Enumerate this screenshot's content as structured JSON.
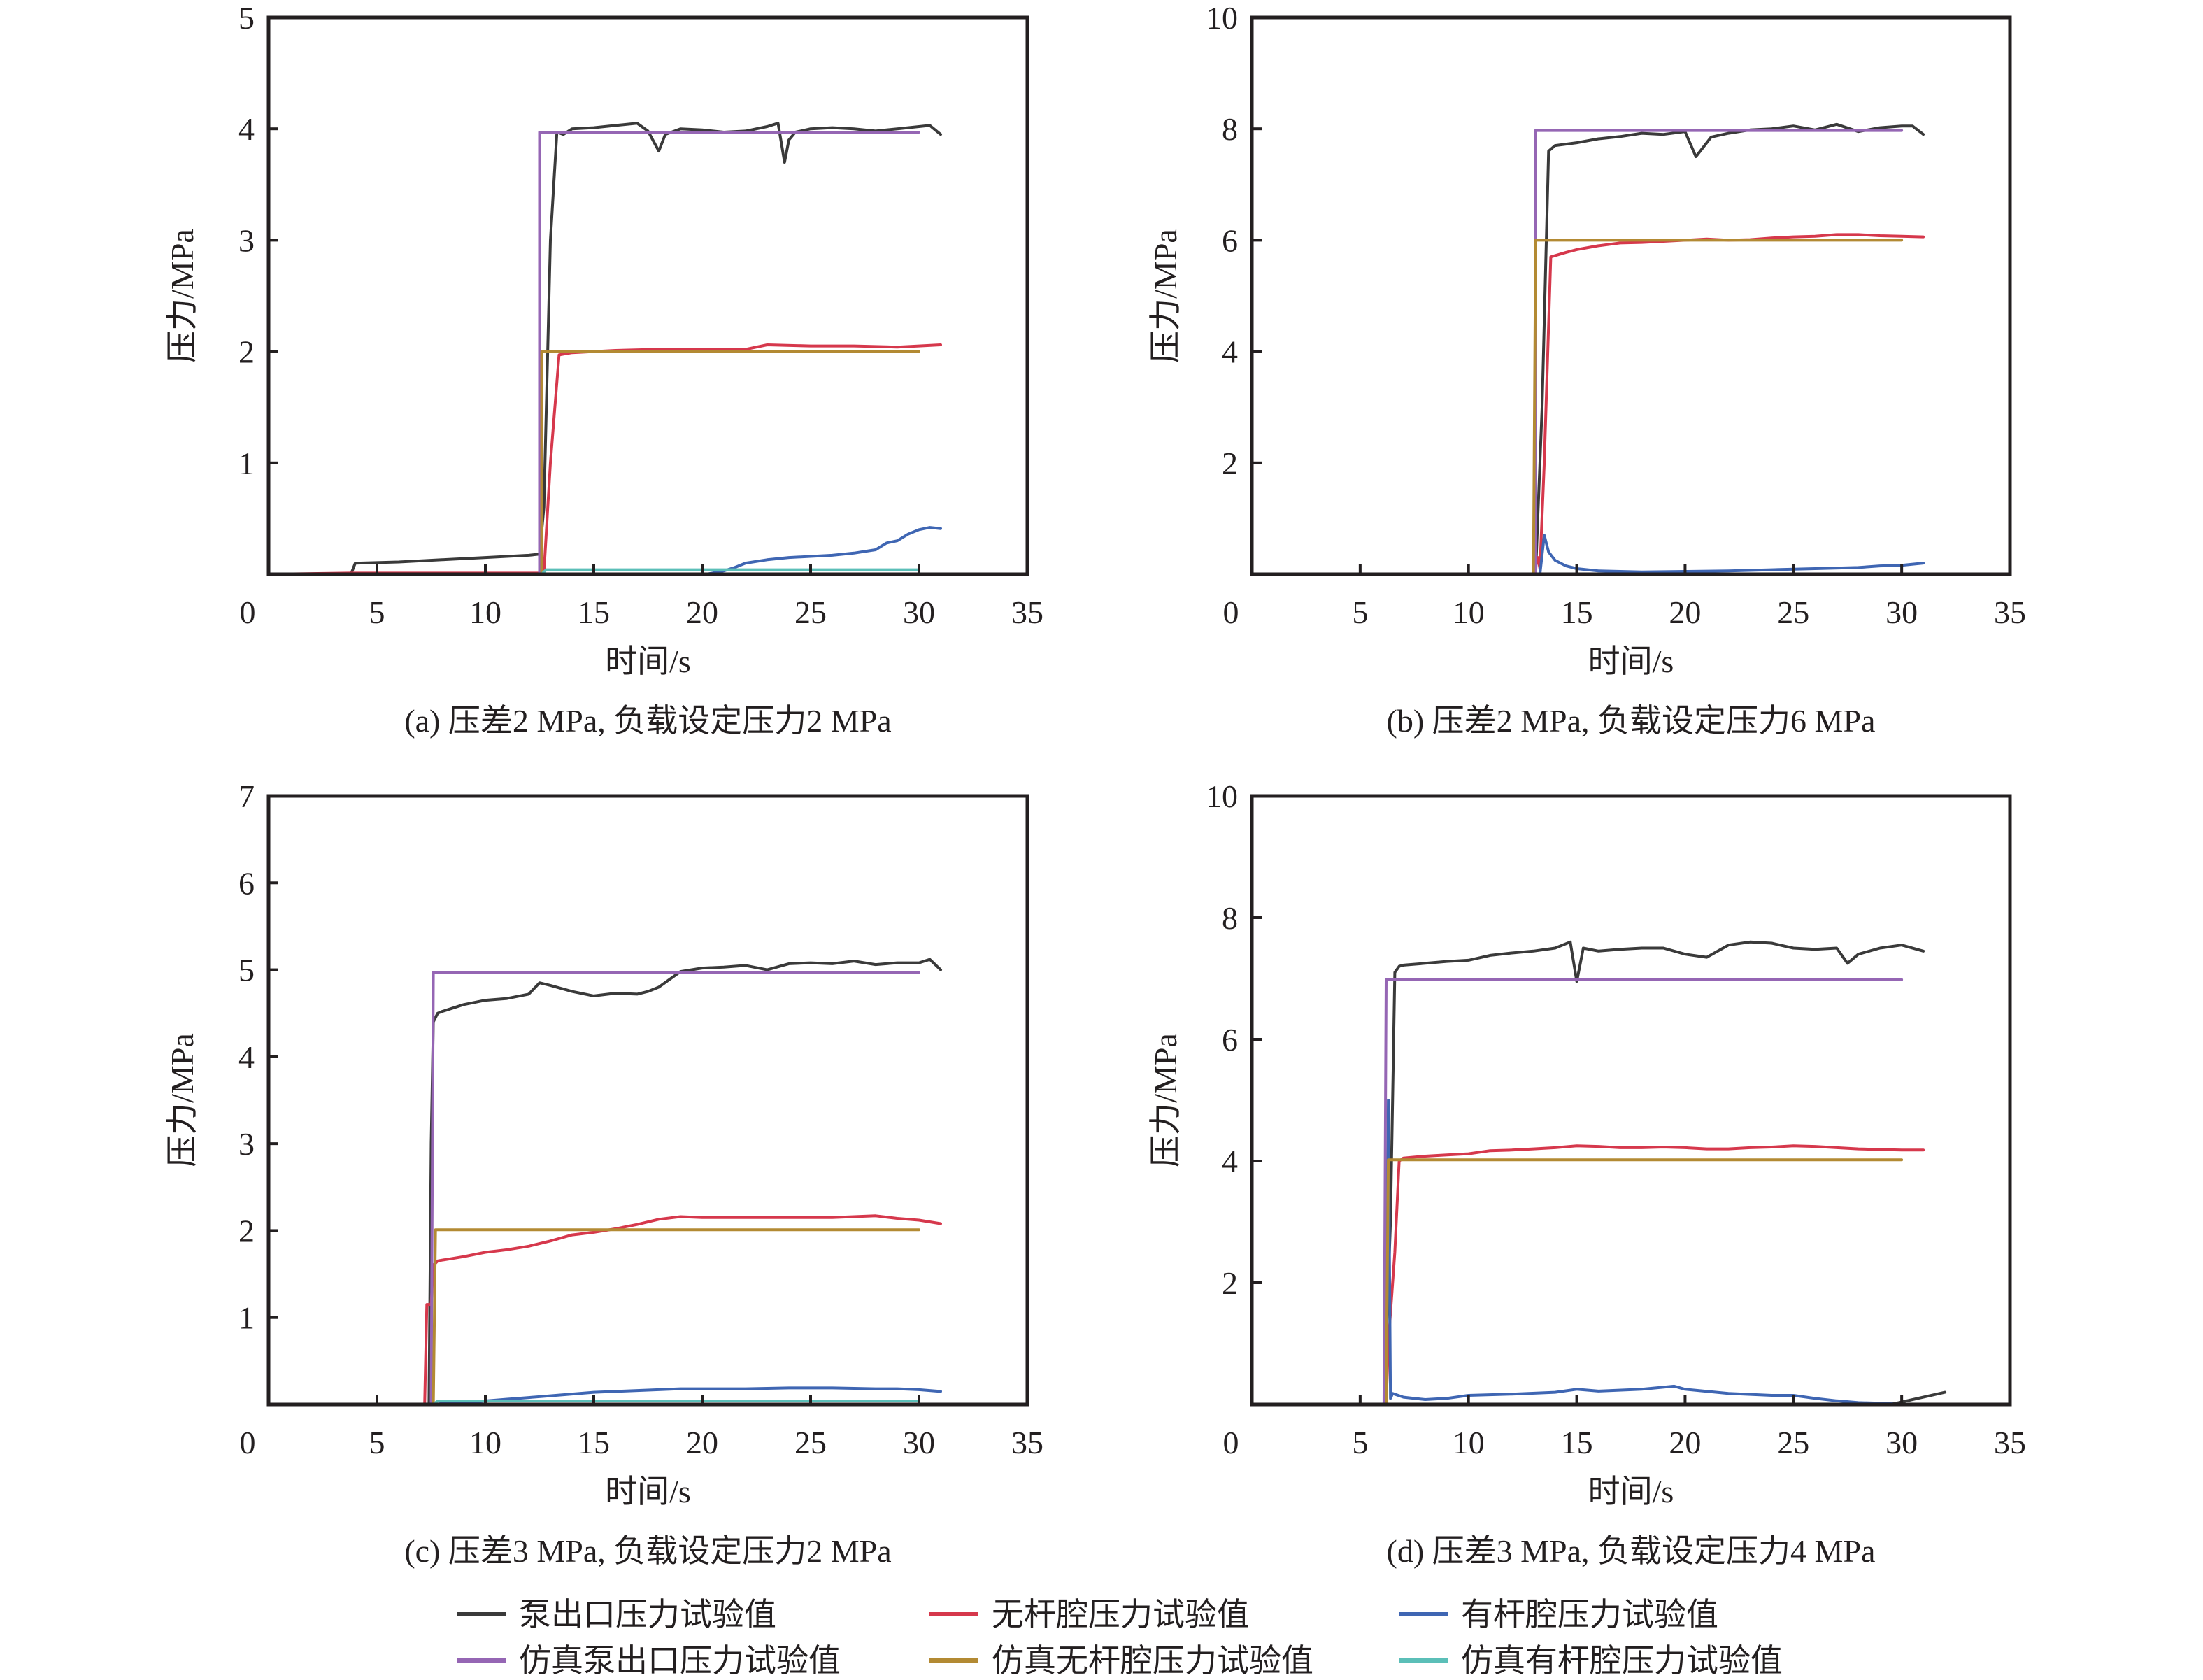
{
  "legend": [
    {
      "label": "泵出口压力试验值",
      "color": "#3a3a3a"
    },
    {
      "label": "无杆腔压力试验值",
      "color": "#d6384c"
    },
    {
      "label": "有杆腔压力试验值",
      "color": "#3f66b3"
    },
    {
      "label": "仿真泵出口压力试验值",
      "color": "#9566b4"
    },
    {
      "label": "仿真无杆腔压力试验值",
      "color": "#b38a33"
    },
    {
      "label": "仿真有杆腔压力试验值",
      "color": "#5bbfb8"
    }
  ],
  "chart_data": [
    {
      "type": "line",
      "id": "a",
      "title": "(a) 压差2 MPa, 负载设定压力2 MPa",
      "xlabel": "时间/s",
      "ylabel": "压力/MPa",
      "xlim": [
        0,
        35
      ],
      "ylim": [
        0,
        5
      ],
      "xticks": [
        0,
        5,
        10,
        15,
        20,
        25,
        30,
        35
      ],
      "yticks": [
        1,
        2,
        3,
        4,
        5
      ],
      "ytick_labels": [
        "1",
        "2",
        "3",
        "4",
        "5"
      ],
      "grid": false,
      "series": [
        {
          "name": "泵出口压力试验值",
          "x": [
            0,
            3.8,
            4.0,
            4.1,
            6,
            8,
            10,
            12,
            12.5,
            12.7,
            13.0,
            13.3,
            13.6,
            14,
            15,
            16,
            17,
            17.5,
            18,
            18.3,
            19,
            20,
            21,
            22,
            23,
            23.5,
            23.8,
            24.0,
            24.3,
            25,
            26,
            27,
            28,
            29,
            30,
            30.5,
            31
          ],
          "y": [
            0,
            0,
            0.1,
            0.1,
            0.11,
            0.13,
            0.15,
            0.17,
            0.18,
            0.6,
            3.0,
            3.97,
            3.95,
            4.0,
            4.01,
            4.03,
            4.05,
            3.98,
            3.8,
            3.95,
            4.0,
            3.99,
            3.97,
            3.98,
            4.02,
            4.05,
            3.7,
            3.9,
            3.97,
            4.0,
            4.01,
            4.0,
            3.98,
            4.0,
            4.02,
            4.03,
            3.95
          ]
        },
        {
          "name": "无杆腔压力试验值",
          "x": [
            0,
            3.7,
            4.0,
            12.7,
            13.0,
            13.4,
            14,
            16,
            18,
            20,
            22,
            23,
            25,
            27,
            29,
            30,
            31
          ],
          "y": [
            0,
            0.01,
            0.01,
            0.01,
            1.0,
            1.97,
            1.99,
            2.01,
            2.02,
            2.02,
            2.02,
            2.06,
            2.05,
            2.05,
            2.04,
            2.05,
            2.06
          ]
        },
        {
          "name": "有杆腔压力试验值",
          "x": [
            0,
            20.2,
            21,
            21.5,
            22,
            23,
            24,
            25,
            26,
            27,
            28,
            28.5,
            29,
            29.5,
            30,
            30.5,
            31
          ],
          "y": [
            0,
            0,
            0.03,
            0.06,
            0.1,
            0.13,
            0.15,
            0.16,
            0.17,
            0.19,
            0.22,
            0.28,
            0.3,
            0.36,
            0.4,
            0.42,
            0.41
          ]
        },
        {
          "name": "仿真泵出口压力试验值",
          "x": [
            0,
            12.5,
            12.5,
            30
          ],
          "y": [
            0,
            0,
            3.97,
            3.97
          ]
        },
        {
          "name": "仿真无杆腔压力试验值",
          "x": [
            0,
            12.6,
            12.6,
            30
          ],
          "y": [
            0,
            0,
            2.0,
            2.0
          ]
        },
        {
          "name": "仿真有杆腔压力试验值",
          "x": [
            0,
            12.6,
            12.8,
            30
          ],
          "y": [
            0,
            0,
            0.04,
            0.04
          ]
        }
      ]
    },
    {
      "type": "line",
      "id": "b",
      "title": "(b) 压差2 MPa, 负载设定压力6 MPa",
      "xlabel": "时间/s",
      "ylabel": "压力/MPa",
      "xlim": [
        0,
        35
      ],
      "ylim": [
        0,
        10
      ],
      "xticks": [
        0,
        5,
        10,
        15,
        20,
        25,
        30,
        35
      ],
      "yticks": [
        2,
        4,
        6,
        8,
        10
      ],
      "ytick_labels": [
        "2",
        "4",
        "6",
        "8",
        "10"
      ],
      "grid": false,
      "series": [
        {
          "name": "泵出口压力试验值",
          "x": [
            0,
            13.1,
            13.4,
            13.7,
            14,
            15,
            16,
            17,
            18,
            19,
            20,
            20.5,
            20.8,
            21.2,
            22,
            23,
            24,
            25,
            26,
            27,
            28,
            29,
            30,
            30.5,
            31
          ],
          "y": [
            0,
            0,
            3.0,
            7.6,
            7.7,
            7.75,
            7.82,
            7.86,
            7.92,
            7.9,
            7.95,
            7.5,
            7.65,
            7.85,
            7.92,
            7.98,
            8.0,
            8.05,
            7.98,
            8.08,
            7.95,
            8.02,
            8.05,
            8.05,
            7.9
          ]
        },
        {
          "name": "无杆腔压力试验值",
          "x": [
            0,
            13.0,
            13.2,
            13.3,
            13.5,
            13.8,
            14.5,
            15,
            16,
            17,
            18,
            19,
            20,
            21,
            22,
            23,
            24,
            25,
            26,
            27,
            28,
            29,
            30,
            31
          ],
          "y": [
            0,
            0,
            0.3,
            0.1,
            2.0,
            5.7,
            5.78,
            5.83,
            5.9,
            5.95,
            5.96,
            5.98,
            6.0,
            6.02,
            6.0,
            6.01,
            6.04,
            6.06,
            6.07,
            6.1,
            6.1,
            6.08,
            6.07,
            6.06
          ]
        },
        {
          "name": "有杆腔压力试验值",
          "x": [
            0,
            13.3,
            13.5,
            13.7,
            14,
            14.5,
            15,
            16,
            18,
            20,
            22,
            24,
            26,
            28,
            29,
            30,
            31
          ],
          "y": [
            0,
            0,
            0.7,
            0.4,
            0.25,
            0.15,
            0.1,
            0.06,
            0.04,
            0.05,
            0.06,
            0.08,
            0.1,
            0.12,
            0.15,
            0.16,
            0.2
          ]
        },
        {
          "name": "仿真泵出口压力试验值",
          "x": [
            0,
            13.1,
            13.1,
            30
          ],
          "y": [
            0,
            0,
            7.97,
            7.97
          ]
        },
        {
          "name": "仿真无杆腔压力试验值",
          "x": [
            0,
            13.0,
            13.1,
            30
          ],
          "y": [
            0,
            0,
            6.0,
            6.0
          ]
        },
        {
          "name": "仿真有杆腔压力试验值",
          "x": [
            0,
            30
          ],
          "y": [
            0,
            0
          ]
        }
      ]
    },
    {
      "type": "line",
      "id": "c",
      "title": "(c) 压差3 MPa, 负载设定压力2 MPa",
      "xlabel": "时间/s",
      "ylabel": "压力/MPa",
      "xlim": [
        0,
        35
      ],
      "ylim": [
        0,
        7
      ],
      "xticks": [
        0,
        5,
        10,
        15,
        20,
        25,
        30,
        35
      ],
      "yticks": [
        1,
        2,
        3,
        4,
        5,
        6,
        7
      ],
      "ytick_labels": [
        "1",
        "2",
        "3",
        "4",
        "5",
        "6",
        "7"
      ],
      "grid": false,
      "series": [
        {
          "name": "泵出口压力试验值",
          "x": [
            0,
            7.4,
            7.5,
            7.6,
            7.8,
            8,
            9,
            10,
            11,
            12,
            12.5,
            13,
            14,
            15,
            16,
            17,
            17.5,
            18,
            19,
            20,
            21,
            22,
            23,
            24,
            25,
            26,
            27,
            28,
            29,
            30,
            30.5,
            31
          ],
          "y": [
            0,
            0,
            3.0,
            4.4,
            4.5,
            4.52,
            4.6,
            4.65,
            4.67,
            4.72,
            4.85,
            4.82,
            4.75,
            4.7,
            4.73,
            4.72,
            4.75,
            4.8,
            4.98,
            5.02,
            5.03,
            5.05,
            5.0,
            5.07,
            5.08,
            5.07,
            5.1,
            5.06,
            5.08,
            5.08,
            5.12,
            5.0
          ]
        },
        {
          "name": "无杆腔压力试验值",
          "x": [
            0,
            7.2,
            7.3,
            7.5,
            7.6,
            7.8,
            8,
            9,
            10,
            11,
            12,
            13,
            14,
            15,
            16,
            17,
            18,
            19,
            20,
            22,
            24,
            26,
            28,
            29,
            30,
            31
          ],
          "y": [
            0,
            0,
            1.15,
            1.15,
            1.6,
            1.65,
            1.66,
            1.7,
            1.75,
            1.78,
            1.82,
            1.88,
            1.95,
            1.98,
            2.02,
            2.07,
            2.13,
            2.16,
            2.15,
            2.15,
            2.15,
            2.15,
            2.17,
            2.14,
            2.12,
            2.08
          ]
        },
        {
          "name": "有杆腔压力试验值",
          "x": [
            0,
            7.6,
            8,
            9,
            10,
            11,
            12,
            13,
            14,
            15,
            16,
            17,
            18,
            19,
            20,
            22,
            24,
            26,
            28,
            29,
            30,
            31
          ],
          "y": [
            0,
            0,
            0.01,
            0.02,
            0.04,
            0.06,
            0.08,
            0.1,
            0.12,
            0.14,
            0.15,
            0.16,
            0.17,
            0.18,
            0.18,
            0.18,
            0.19,
            0.19,
            0.18,
            0.18,
            0.17,
            0.15
          ]
        },
        {
          "name": "仿真泵出口压力试验值",
          "x": [
            0,
            7.5,
            7.6,
            30
          ],
          "y": [
            0,
            0,
            4.97,
            4.97
          ]
        },
        {
          "name": "仿真无杆腔压力试验值",
          "x": [
            0,
            7.6,
            7.7,
            30
          ],
          "y": [
            0,
            0,
            2.01,
            2.01
          ]
        },
        {
          "name": "仿真有杆腔压力试验值",
          "x": [
            0,
            7.6,
            7.8,
            30
          ],
          "y": [
            0,
            0,
            0.04,
            0.04
          ]
        }
      ]
    },
    {
      "type": "line",
      "id": "d",
      "title": "(d) 压差3 MPa, 负载设定压力4 MPa",
      "xlabel": "时间/s",
      "ylabel": "压力/MPa",
      "xlim": [
        0,
        35
      ],
      "ylim": [
        0,
        10
      ],
      "xticks": [
        0,
        5,
        10,
        15,
        20,
        25,
        30,
        35
      ],
      "yticks": [
        2,
        4,
        6,
        8,
        10
      ],
      "ytick_labels": [
        "2",
        "4",
        "6",
        "8",
        "10"
      ],
      "grid": false,
      "series": [
        {
          "name": "泵出口压力试验值",
          "x": [
            0,
            6.1,
            6.4,
            6.6,
            6.8,
            7,
            8,
            9,
            10,
            11,
            12,
            13,
            14,
            14.7,
            15,
            15.3,
            16,
            17,
            18,
            19,
            20,
            21,
            22,
            23,
            24,
            25,
            26,
            27,
            27.5,
            28,
            29,
            30,
            31
          ],
          "y": [
            0,
            0,
            3.0,
            7.1,
            7.2,
            7.22,
            7.25,
            7.28,
            7.3,
            7.38,
            7.42,
            7.45,
            7.5,
            7.6,
            6.95,
            7.5,
            7.45,
            7.48,
            7.5,
            7.5,
            7.4,
            7.35,
            7.55,
            7.6,
            7.58,
            7.5,
            7.48,
            7.5,
            7.25,
            7.4,
            7.5,
            7.55,
            7.45
          ]
        },
        {
          "name": "无杆腔压力试验值",
          "x": [
            0,
            6.2,
            6.3,
            6.6,
            6.8,
            7,
            8,
            9,
            10,
            11,
            12,
            13,
            14,
            15,
            16,
            17,
            18,
            19,
            20,
            21,
            22,
            23,
            24,
            25,
            26,
            27,
            28,
            29,
            30,
            31
          ],
          "y": [
            0,
            0,
            1.0,
            2.5,
            4.0,
            4.05,
            4.08,
            4.1,
            4.12,
            4.17,
            4.18,
            4.2,
            4.22,
            4.25,
            4.24,
            4.22,
            4.22,
            4.23,
            4.22,
            4.2,
            4.2,
            4.22,
            4.23,
            4.25,
            4.24,
            4.22,
            4.2,
            4.19,
            4.18,
            4.18
          ]
        },
        {
          "name": "有杆腔压力试验值",
          "x": [
            0,
            6.2,
            6.3,
            6.4,
            6.5,
            7,
            8,
            9,
            10,
            12,
            14,
            15,
            16,
            18,
            19.5,
            20,
            22,
            24,
            25,
            26,
            27,
            28,
            29,
            30
          ],
          "y": [
            0,
            0,
            5.0,
            0.1,
            0.18,
            0.12,
            0.08,
            0.1,
            0.15,
            0.17,
            0.2,
            0.25,
            0.22,
            0.25,
            0.3,
            0.25,
            0.18,
            0.15,
            0.15,
            0.1,
            0.06,
            0.03,
            0.02,
            0.01
          ]
        },
        {
          "name": "仿真泵出口压力试验值",
          "x": [
            0,
            6.1,
            6.2,
            30
          ],
          "y": [
            0,
            0,
            6.98,
            6.98
          ]
        },
        {
          "name": "仿真无杆腔压力试验值",
          "x": [
            0,
            6.2,
            6.3,
            30
          ],
          "y": [
            0,
            0,
            4.02,
            4.02
          ]
        },
        {
          "name": "仿真有杆腔压力试验值",
          "x": [
            0,
            30
          ],
          "y": [
            0,
            0
          ]
        },
        {
          "name": "泵出口压力试验值",
          "x": [
            29.5,
            32
          ],
          "y": [
            0,
            0.2
          ]
        }
      ]
    }
  ]
}
